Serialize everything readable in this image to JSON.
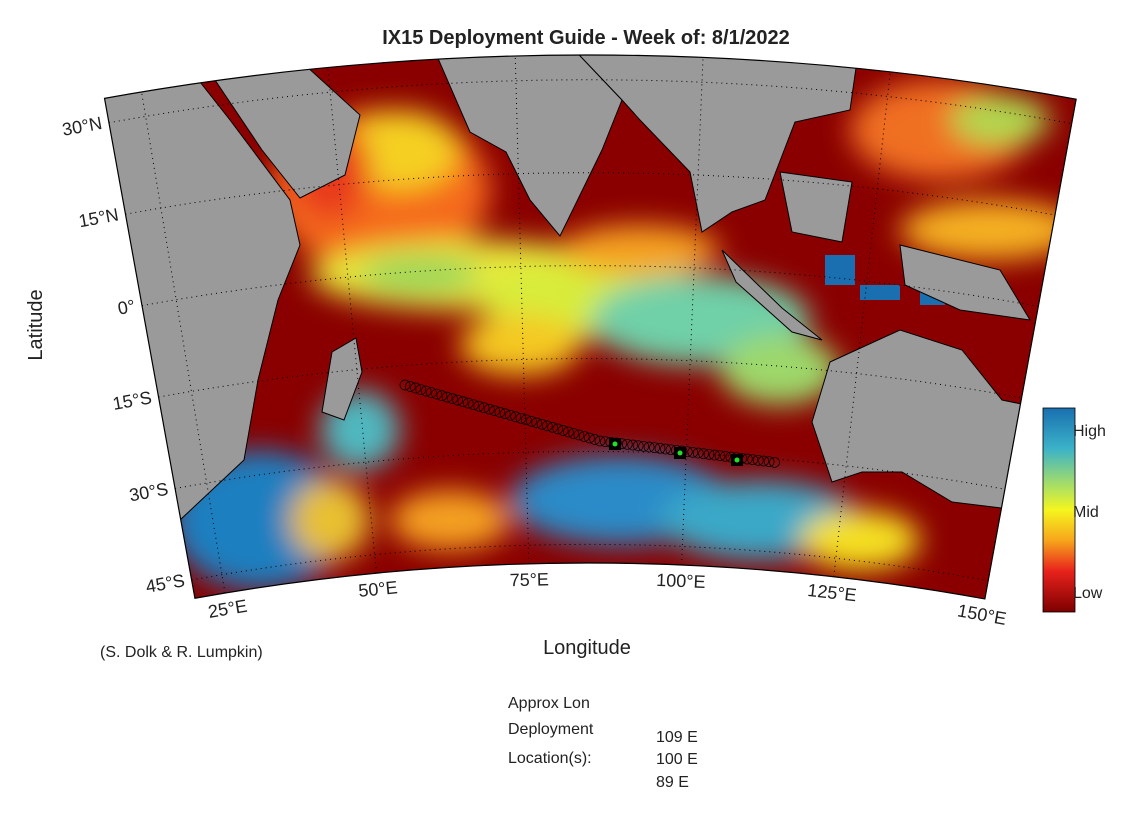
{
  "title": "IX15 Deployment Guide - Week of: 8/1/2022",
  "xlabel": "Longitude",
  "ylabel": "Latitude",
  "lon_ticks": [
    {
      "value": 25,
      "label": "25°E"
    },
    {
      "value": 50,
      "label": "50°E"
    },
    {
      "value": 75,
      "label": "75°E"
    },
    {
      "value": 100,
      "label": "100°E"
    },
    {
      "value": 125,
      "label": "125°E"
    },
    {
      "value": 150,
      "label": "150°E"
    }
  ],
  "lat_ticks": [
    {
      "value": 30,
      "label": "30°N"
    },
    {
      "value": 15,
      "label": "15°N"
    },
    {
      "value": 0,
      "label": "0°"
    },
    {
      "value": -15,
      "label": "15°S"
    },
    {
      "value": -30,
      "label": "30°S"
    },
    {
      "value": -45,
      "label": "45°S"
    }
  ],
  "colorbar": {
    "labels": [
      "High",
      "Mid",
      "Low"
    ]
  },
  "credit": "(S. Dolk & R. Lumpkin)",
  "deployment": {
    "heading": [
      "Approx Lon",
      "Deployment",
      "Location(s):"
    ],
    "locations": [
      "109 E",
      "100 E",
      "89 E"
    ]
  }
}
